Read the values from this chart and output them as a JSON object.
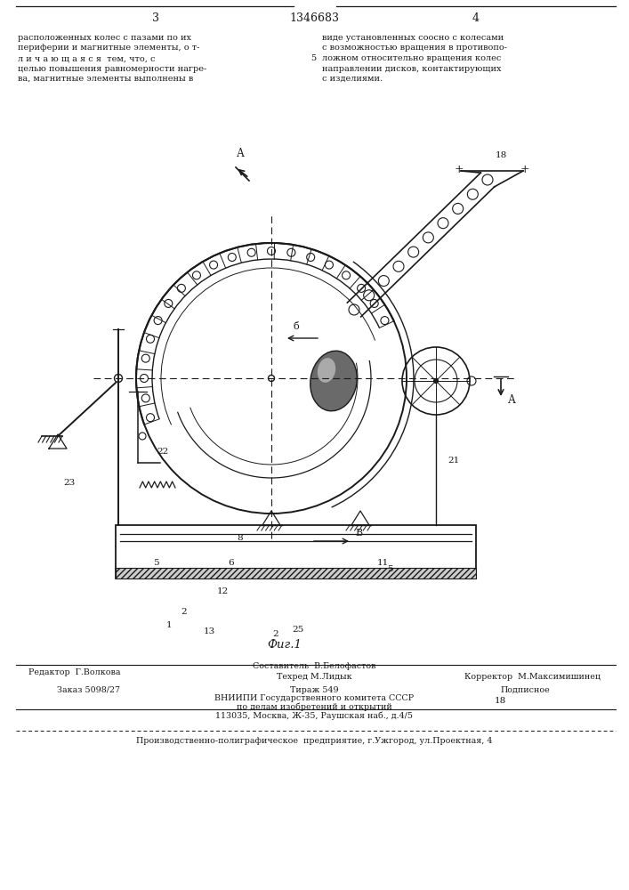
{
  "title": "1346683",
  "page_left": "3",
  "page_right": "4",
  "fig_caption": "Фиг.1",
  "text_left_lines": [
    "расположенных колес с пазами по их",
    "периферии и магнитные элементы, о т-",
    "л и ч а ю щ а я с я  тем, что, с",
    "целью повышения равномерности нагре-",
    "ва, магнитные элементы выполнены в"
  ],
  "text_right_lines": [
    "виде установленных соосно с колесами",
    "с возможностью вращения в противопо-",
    "ложном относительно вращения колес",
    "направлении дисков, контактирующих",
    "с изделиями."
  ],
  "footer_editor_label": "Редактор  Г.Волкова",
  "footer_composer_label": "Составитель  В.Белофастов",
  "footer_tech_label": "Техред М.Лидык",
  "footer_corrector_label": "Корректор  М.Максимишинец",
  "footer_order": "Заказ 5098/27",
  "footer_edition": "Тираж 549",
  "footer_subscription": "Подписное",
  "footer_org1": "ВНИИПИ Государственного комитета СССР",
  "footer_org2": "по делам изобретений и открытий",
  "footer_org3": "113035, Москва, Ж-35, Раушская наб., д.4/5",
  "footer_org4": "Производственно-полиграфическое  предприятие, г.Ужгород, ул.Проектная, 4",
  "bg_color": "#ffffff",
  "lc": "#1a1a1a"
}
